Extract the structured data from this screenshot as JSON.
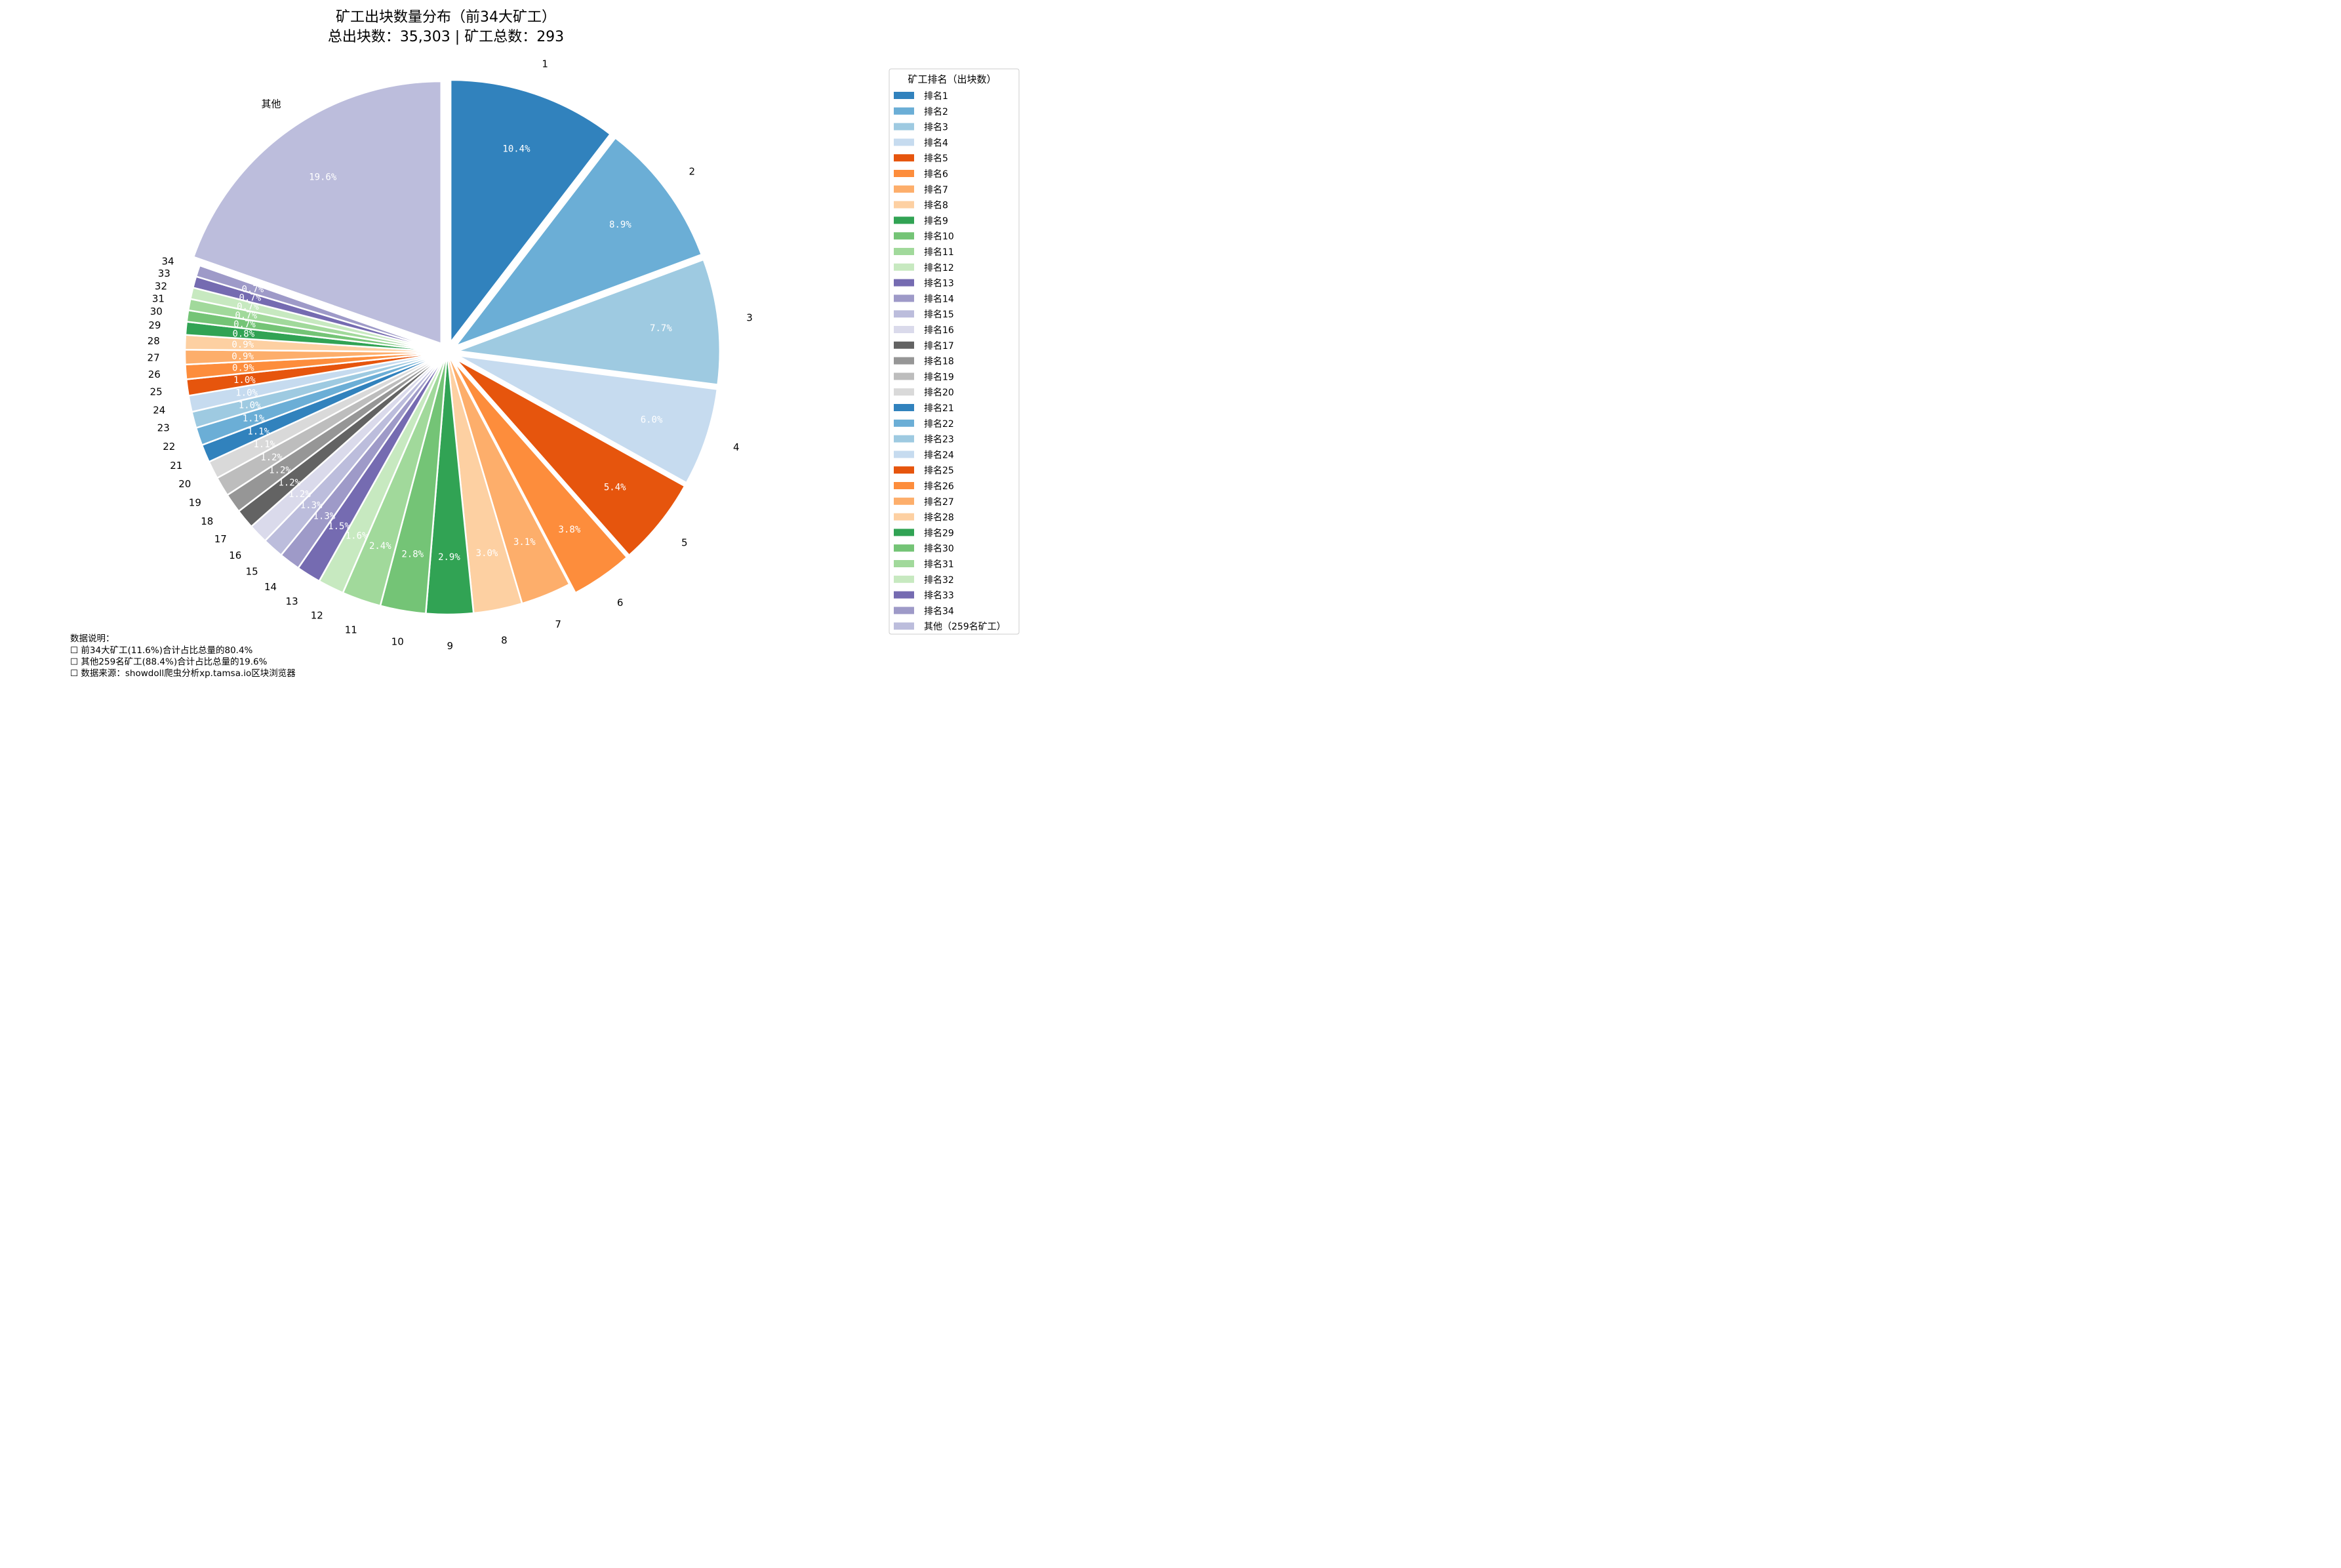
{
  "chart_data": {
    "type": "pie",
    "title": "矿工出块数量分布（前34大矿工）",
    "subtitle": "总出块数：35,303 | 矿工总数：293",
    "legend_title": "矿工排名（出块数）",
    "legend_position": "right",
    "start": "top, clockwise",
    "slices": [
      {
        "label": "1",
        "legend": "排名1",
        "value": 10.4,
        "pct_text": "10.4%",
        "color": "#3182bd"
      },
      {
        "label": "2",
        "legend": "排名2",
        "value": 8.9,
        "pct_text": "8.9%",
        "color": "#6baed6"
      },
      {
        "label": "3",
        "legend": "排名3",
        "value": 7.7,
        "pct_text": "7.7%",
        "color": "#9ecae1"
      },
      {
        "label": "4",
        "legend": "排名4",
        "value": 6.0,
        "pct_text": "6.0%",
        "color": "#c6dbef"
      },
      {
        "label": "5",
        "legend": "排名5",
        "value": 5.4,
        "pct_text": "5.4%",
        "color": "#e6550d"
      },
      {
        "label": "6",
        "legend": "排名6",
        "value": 3.8,
        "pct_text": "3.8%",
        "color": "#fd8d3c"
      },
      {
        "label": "7",
        "legend": "排名7",
        "value": 3.1,
        "pct_text": "3.1%",
        "color": "#fdae6b"
      },
      {
        "label": "8",
        "legend": "排名8",
        "value": 3.0,
        "pct_text": "3.0%",
        "color": "#fdd0a2"
      },
      {
        "label": "9",
        "legend": "排名9",
        "value": 2.9,
        "pct_text": "2.9%",
        "color": "#31a354"
      },
      {
        "label": "10",
        "legend": "排名10",
        "value": 2.8,
        "pct_text": "2.8%",
        "color": "#74c476"
      },
      {
        "label": "11",
        "legend": "排名11",
        "value": 2.4,
        "pct_text": "2.4%",
        "color": "#a1d99b"
      },
      {
        "label": "12",
        "legend": "排名12",
        "value": 1.6,
        "pct_text": "1.6%",
        "color": "#c7e9c0"
      },
      {
        "label": "13",
        "legend": "排名13",
        "value": 1.5,
        "pct_text": "1.5%",
        "color": "#756bb1"
      },
      {
        "label": "14",
        "legend": "排名14",
        "value": 1.3,
        "pct_text": "1.3%",
        "color": "#9e9ac8"
      },
      {
        "label": "15",
        "legend": "排名15",
        "value": 1.3,
        "pct_text": "1.3%",
        "color": "#bcbddc"
      },
      {
        "label": "16",
        "legend": "排名16",
        "value": 1.2,
        "pct_text": "1.2%",
        "color": "#dadaeb"
      },
      {
        "label": "17",
        "legend": "排名17",
        "value": 1.2,
        "pct_text": "1.2%",
        "color": "#636363"
      },
      {
        "label": "18",
        "legend": "排名18",
        "value": 1.2,
        "pct_text": "1.2%",
        "color": "#969696"
      },
      {
        "label": "19",
        "legend": "排名19",
        "value": 1.2,
        "pct_text": "1.2%",
        "color": "#bdbdbd"
      },
      {
        "label": "20",
        "legend": "排名20",
        "value": 1.1,
        "pct_text": "1.1%",
        "color": "#d9d9d9"
      },
      {
        "label": "21",
        "legend": "排名21",
        "value": 1.1,
        "pct_text": "1.1%",
        "color": "#3182bd"
      },
      {
        "label": "22",
        "legend": "排名22",
        "value": 1.1,
        "pct_text": "1.1%",
        "color": "#6baed6"
      },
      {
        "label": "23",
        "legend": "排名23",
        "value": 1.0,
        "pct_text": "1.0%",
        "color": "#9ecae1"
      },
      {
        "label": "24",
        "legend": "排名24",
        "value": 1.0,
        "pct_text": "1.0%",
        "color": "#c6dbef"
      },
      {
        "label": "25",
        "legend": "排名25",
        "value": 1.0,
        "pct_text": "1.0%",
        "color": "#e6550d"
      },
      {
        "label": "26",
        "legend": "排名26",
        "value": 0.9,
        "pct_text": "0.9%",
        "color": "#fd8d3c"
      },
      {
        "label": "27",
        "legend": "排名27",
        "value": 0.9,
        "pct_text": "0.9%",
        "color": "#fdae6b"
      },
      {
        "label": "28",
        "legend": "排名28",
        "value": 0.9,
        "pct_text": "0.9%",
        "color": "#fdd0a2"
      },
      {
        "label": "29",
        "legend": "排名29",
        "value": 0.8,
        "pct_text": "0.8%",
        "color": "#31a354"
      },
      {
        "label": "30",
        "legend": "排名30",
        "value": 0.7,
        "pct_text": "0.7%",
        "color": "#74c476"
      },
      {
        "label": "31",
        "legend": "排名31",
        "value": 0.7,
        "pct_text": "0.7%",
        "color": "#a1d99b"
      },
      {
        "label": "32",
        "legend": "排名32",
        "value": 0.7,
        "pct_text": "0.7%",
        "color": "#c7e9c0"
      },
      {
        "label": "33",
        "legend": "排名33",
        "value": 0.7,
        "pct_text": "0.7%",
        "color": "#756bb1"
      },
      {
        "label": "34",
        "legend": "排名34",
        "value": 0.7,
        "pct_text": "0.7%",
        "color": "#9e9ac8"
      },
      {
        "label": "其他",
        "legend": "其他（259名矿工）",
        "value": 19.6,
        "pct_text": "19.6%",
        "color": "#bcbddc"
      }
    ],
    "exploded": [
      "1",
      "2",
      "3",
      "4",
      "5",
      "6",
      "其他"
    ]
  },
  "notes": {
    "heading": "数据说明：",
    "lines": [
      "前34大矿工(11.6%)合计占比总量的80.4%",
      "其他259名矿工(88.4%)合计占比总量的19.6%",
      "数据来源：showdoll爬虫分析xp.tamsa.io区块浏览器"
    ],
    "bullet": "☐"
  }
}
